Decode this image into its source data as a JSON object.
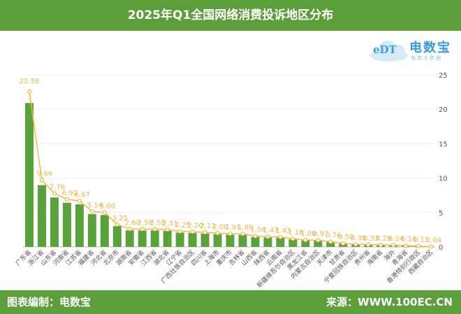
{
  "header": {
    "title": "2025年Q1全国网络消费投诉地区分布"
  },
  "logo": {
    "mark": "eDT",
    "name": "电数宝",
    "tagline": "电商大数据"
  },
  "footer": {
    "left": "图表编制：电数宝",
    "right": "来源：WWW.100EC.CN"
  },
  "chart_data": {
    "type": "bar+line",
    "title": "2025年Q1全国网络消费投诉地区分布",
    "categories": [
      "广东省",
      "浙江省",
      "山东省",
      "河南省",
      "江苏省",
      "福建省",
      "河北省",
      "北京市",
      "湖南省",
      "安徽省",
      "江西省",
      "湖北省",
      "辽宁省",
      "广西壮族自治区",
      "四川省",
      "上海市",
      "重庆市",
      "吉林省",
      "山西省",
      "陕西省",
      "云南省",
      "新疆维吾尔自治区",
      "黑龙江省",
      "内蒙古自治区",
      "天津市",
      "甘肃省",
      "宁夏回族自治区",
      "贵州省",
      "海南省",
      "海外",
      "青海省",
      "香港特别行政区",
      "西藏自治区"
    ],
    "values": [
      22.58,
      9.69,
      7.76,
      6.92,
      6.67,
      5.14,
      5.0,
      3.25,
      2.6,
      2.58,
      2.58,
      2.51,
      2.25,
      2.2,
      2.11,
      2.0,
      1.91,
      1.89,
      1.56,
      1.47,
      1.43,
      1.18,
      1.0,
      0.97,
      0.76,
      0.5,
      0.38,
      0.33,
      0.29,
      0.24,
      0.18,
      0.11,
      0.04
    ],
    "y_right_ticks": [
      0,
      5,
      10,
      15,
      20,
      25
    ],
    "ylim": [
      0,
      25
    ],
    "grid": true,
    "colors": {
      "bar": "#5aa33c",
      "line": "#f3b63f",
      "label": "#f0b347",
      "grid": "#eef0f4",
      "axis_text": "#555555"
    }
  }
}
